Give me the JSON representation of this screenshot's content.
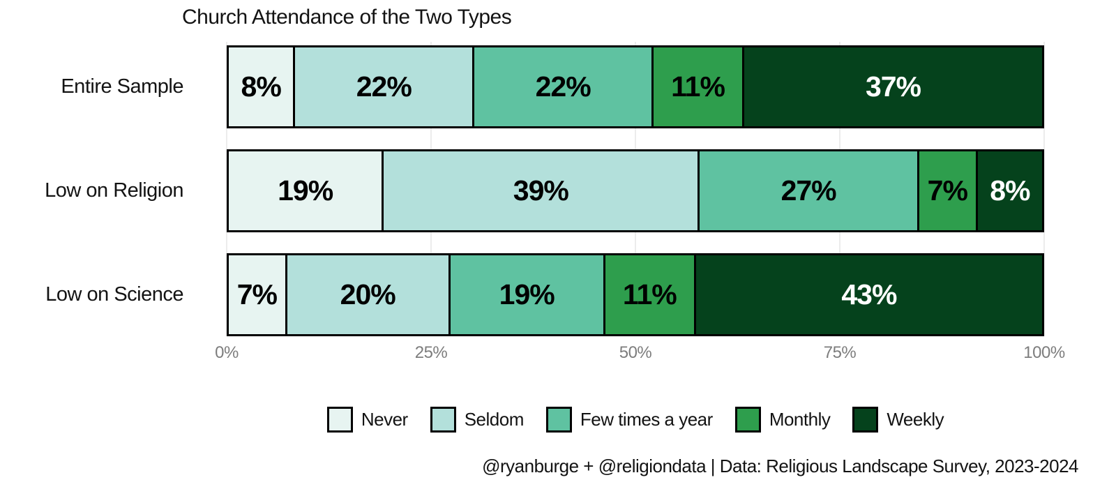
{
  "title": "Church Attendance of the Two Types",
  "caption": "@ryanburge + @religiondata | Data: Religious Landscape Survey, 2023-2024",
  "colors": {
    "never": "#e7f4f1",
    "seldom": "#b3e0db",
    "few_times_a_year": "#5fc2a1",
    "monthly": "#2e9e4d",
    "weekly": "#05421c",
    "bar_border": "#000000",
    "gridline": "#ececec",
    "tick_text": "#7d7d7d",
    "label_on_light": "#000000",
    "label_on_dark": "#ffffff"
  },
  "chart_data": {
    "type": "bar",
    "orientation": "horizontal",
    "stacked": true,
    "title": "Church Attendance of the Two Types",
    "categories": [
      "Entire Sample",
      "Low on Religion",
      "Low on Science"
    ],
    "series": [
      {
        "name": "Never",
        "color": "#e7f4f1",
        "text_color": "#000000",
        "values": [
          8,
          19,
          7
        ]
      },
      {
        "name": "Seldom",
        "color": "#b3e0db",
        "text_color": "#000000",
        "values": [
          22,
          39,
          20
        ]
      },
      {
        "name": "Few times a year",
        "color": "#5fc2a1",
        "text_color": "#000000",
        "values": [
          22,
          27,
          19
        ]
      },
      {
        "name": "Monthly",
        "color": "#2e9e4d",
        "text_color": "#000000",
        "values": [
          11,
          7,
          11
        ]
      },
      {
        "name": "Weekly",
        "color": "#05421c",
        "text_color": "#ffffff",
        "values": [
          37,
          8,
          43
        ]
      }
    ],
    "value_suffix": "%",
    "x_ticks": [
      {
        "label": "0%",
        "pct": 0
      },
      {
        "label": "25%",
        "pct": 25
      },
      {
        "label": "50%",
        "pct": 50
      },
      {
        "label": "75%",
        "pct": 75
      },
      {
        "label": "100%",
        "pct": 100
      }
    ],
    "xlim": [
      0,
      100
    ],
    "grid": true,
    "legend_position": "bottom"
  }
}
